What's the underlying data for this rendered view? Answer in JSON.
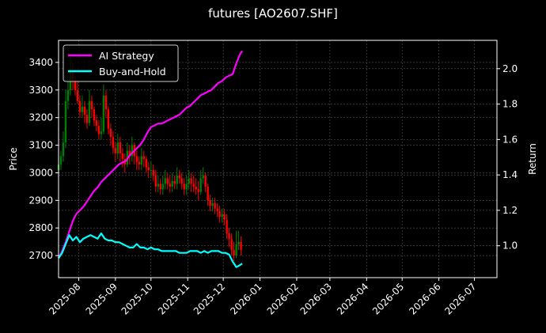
{
  "chart_data": {
    "type": "line",
    "title": "futures [AO2607.SHF]",
    "xlabel": "",
    "ylabel": "Price",
    "ylabel_right": "Return",
    "grid": true,
    "legend_position": "upper left",
    "ylim": [
      2620,
      3480
    ],
    "ylim_right": [
      0.82,
      2.16
    ],
    "xlim": [
      "2025-07-15",
      "2026-07-20"
    ],
    "x_ticks": [
      "2025-08",
      "2025-09",
      "2025-10",
      "2025-11",
      "2025-12",
      "2026-01",
      "2026-02",
      "2026-03",
      "2026-04",
      "2026-05",
      "2026-06",
      "2026-07"
    ],
    "y_ticks_left": [
      2700,
      2800,
      2900,
      3000,
      3100,
      3200,
      3300,
      3400
    ],
    "y_ticks_right": [
      "1.0",
      "1.2",
      "1.4",
      "1.6",
      "1.8",
      "2.0"
    ],
    "colors": {
      "ai_strategy": "#ff00ff",
      "buy_and_hold": "#00ffff",
      "candle_up": "#008000",
      "candle_down": "#ff0000",
      "background": "#000000",
      "grid": "#555555",
      "axes": "#ffffff"
    },
    "series": [
      {
        "name": "AI Strategy",
        "axis": "right",
        "x": [
          "2025-07-15",
          "2025-07-18",
          "2025-07-21",
          "2025-07-24",
          "2025-07-27",
          "2025-07-30",
          "2025-08-02",
          "2025-08-05",
          "2025-08-08",
          "2025-08-11",
          "2025-08-14",
          "2025-08-17",
          "2025-08-20",
          "2025-08-23",
          "2025-08-26",
          "2025-08-29",
          "2025-09-01",
          "2025-09-04",
          "2025-09-07",
          "2025-09-10",
          "2025-09-13",
          "2025-09-16",
          "2025-09-19",
          "2025-09-22",
          "2025-09-25",
          "2025-09-28",
          "2025-10-01",
          "2025-10-04",
          "2025-10-07",
          "2025-10-10",
          "2025-10-13",
          "2025-10-16",
          "2025-10-19",
          "2025-10-22",
          "2025-10-25",
          "2025-10-28",
          "2025-10-31",
          "2025-11-03",
          "2025-11-06",
          "2025-11-09",
          "2025-11-12",
          "2025-11-15",
          "2025-11-18",
          "2025-11-21",
          "2025-11-24",
          "2025-11-27",
          "2025-11-30",
          "2025-12-03",
          "2025-12-06",
          "2025-12-09",
          "2025-12-12",
          "2025-12-15",
          "2025-12-17"
        ],
        "values": [
          0.93,
          0.97,
          1.02,
          1.08,
          1.14,
          1.18,
          1.2,
          1.22,
          1.25,
          1.28,
          1.31,
          1.33,
          1.36,
          1.38,
          1.4,
          1.42,
          1.44,
          1.46,
          1.47,
          1.48,
          1.51,
          1.53,
          1.55,
          1.57,
          1.6,
          1.64,
          1.67,
          1.68,
          1.69,
          1.69,
          1.7,
          1.71,
          1.72,
          1.73,
          1.74,
          1.76,
          1.78,
          1.79,
          1.81,
          1.83,
          1.85,
          1.86,
          1.87,
          1.88,
          1.9,
          1.92,
          1.93,
          1.95,
          1.96,
          1.97,
          2.03,
          2.08,
          2.1
        ]
      },
      {
        "name": "Buy-and-Hold",
        "axis": "right",
        "x": [
          "2025-07-15",
          "2025-07-18",
          "2025-07-21",
          "2025-07-24",
          "2025-07-27",
          "2025-07-30",
          "2025-08-02",
          "2025-08-05",
          "2025-08-08",
          "2025-08-11",
          "2025-08-14",
          "2025-08-17",
          "2025-08-20",
          "2025-08-23",
          "2025-08-26",
          "2025-08-29",
          "2025-09-01",
          "2025-09-04",
          "2025-09-07",
          "2025-09-10",
          "2025-09-13",
          "2025-09-16",
          "2025-09-19",
          "2025-09-22",
          "2025-09-25",
          "2025-09-28",
          "2025-10-01",
          "2025-10-04",
          "2025-10-07",
          "2025-10-10",
          "2025-10-13",
          "2025-10-16",
          "2025-10-19",
          "2025-10-22",
          "2025-10-25",
          "2025-10-28",
          "2025-10-31",
          "2025-11-03",
          "2025-11-06",
          "2025-11-09",
          "2025-11-12",
          "2025-11-15",
          "2025-11-18",
          "2025-11-21",
          "2025-11-24",
          "2025-11-27",
          "2025-11-30",
          "2025-12-03",
          "2025-12-06",
          "2025-12-09",
          "2025-12-12",
          "2025-12-15",
          "2025-12-17"
        ],
        "values": [
          0.93,
          0.96,
          1.01,
          1.06,
          1.03,
          1.05,
          1.02,
          1.04,
          1.05,
          1.06,
          1.05,
          1.04,
          1.07,
          1.04,
          1.03,
          1.03,
          1.02,
          1.02,
          1.01,
          1.0,
          0.99,
          0.99,
          1.01,
          0.99,
          0.99,
          0.98,
          0.99,
          0.98,
          0.98,
          0.97,
          0.97,
          0.97,
          0.97,
          0.97,
          0.96,
          0.96,
          0.96,
          0.97,
          0.97,
          0.97,
          0.96,
          0.97,
          0.96,
          0.97,
          0.97,
          0.97,
          0.96,
          0.96,
          0.95,
          0.91,
          0.88,
          0.89,
          0.9
        ]
      }
    ],
    "candles": {
      "axis": "left",
      "x": [
        "2025-07-15",
        "2025-07-17",
        "2025-07-19",
        "2025-07-21",
        "2025-07-23",
        "2025-07-25",
        "2025-07-27",
        "2025-07-29",
        "2025-07-31",
        "2025-08-02",
        "2025-08-04",
        "2025-08-06",
        "2025-08-08",
        "2025-08-10",
        "2025-08-12",
        "2025-08-14",
        "2025-08-16",
        "2025-08-18",
        "2025-08-20",
        "2025-08-22",
        "2025-08-24",
        "2025-08-26",
        "2025-08-28",
        "2025-08-30",
        "2025-09-01",
        "2025-09-03",
        "2025-09-05",
        "2025-09-07",
        "2025-09-09",
        "2025-09-11",
        "2025-09-13",
        "2025-09-15",
        "2025-09-17",
        "2025-09-19",
        "2025-09-21",
        "2025-09-23",
        "2025-09-25",
        "2025-09-27",
        "2025-09-29",
        "2025-10-01",
        "2025-10-03",
        "2025-10-05",
        "2025-10-07",
        "2025-10-09",
        "2025-10-11",
        "2025-10-13",
        "2025-10-15",
        "2025-10-17",
        "2025-10-19",
        "2025-10-21",
        "2025-10-23",
        "2025-10-25",
        "2025-10-27",
        "2025-10-29",
        "2025-10-31",
        "2025-11-02",
        "2025-11-04",
        "2025-11-06",
        "2025-11-08",
        "2025-11-10",
        "2025-11-12",
        "2025-11-14",
        "2025-11-16",
        "2025-11-18",
        "2025-11-20",
        "2025-11-22",
        "2025-11-24",
        "2025-11-26",
        "2025-11-28",
        "2025-11-30",
        "2025-12-02",
        "2025-12-04",
        "2025-12-06",
        "2025-12-08",
        "2025-12-10",
        "2025-12-12",
        "2025-12-14",
        "2025-12-16"
      ],
      "open": [
        3010,
        3030,
        3060,
        3110,
        3260,
        3300,
        3370,
        3330,
        3300,
        3260,
        3220,
        3240,
        3210,
        3180,
        3260,
        3230,
        3190,
        3170,
        3140,
        3150,
        3280,
        3230,
        3160,
        3130,
        3090,
        3070,
        3110,
        3070,
        3050,
        3030,
        3080,
        3060,
        3100,
        3060,
        3040,
        3030,
        3060,
        3050,
        3020,
        3010,
        3010,
        2990,
        2950,
        2960,
        2940,
        2960,
        2980,
        2960,
        2950,
        2970,
        2960,
        2990,
        2980,
        2960,
        2940,
        2960,
        2980,
        2960,
        2950,
        2940,
        2930,
        2980,
        2990,
        2950,
        2900,
        2880,
        2890,
        2870,
        2860,
        2840,
        2850,
        2830,
        2780,
        2760,
        2720,
        2700,
        2740,
        2750
      ],
      "close": [
        3030,
        3060,
        3110,
        3260,
        3300,
        3370,
        3330,
        3300,
        3260,
        3220,
        3240,
        3210,
        3180,
        3260,
        3230,
        3190,
        3170,
        3140,
        3150,
        3280,
        3230,
        3160,
        3130,
        3090,
        3070,
        3110,
        3070,
        3050,
        3030,
        3080,
        3060,
        3100,
        3060,
        3040,
        3030,
        3060,
        3050,
        3020,
        3010,
        3010,
        2990,
        2950,
        2960,
        2940,
        2960,
        2980,
        2960,
        2950,
        2970,
        2960,
        2990,
        2980,
        2960,
        2940,
        2960,
        2980,
        2960,
        2950,
        2940,
        2930,
        2980,
        2990,
        2950,
        2900,
        2880,
        2890,
        2870,
        2860,
        2840,
        2850,
        2830,
        2780,
        2760,
        2720,
        2700,
        2740,
        2750,
        2720
      ],
      "high": [
        3050,
        3080,
        3150,
        3300,
        3350,
        3420,
        3400,
        3350,
        3330,
        3280,
        3280,
        3260,
        3230,
        3300,
        3280,
        3240,
        3210,
        3190,
        3200,
        3320,
        3300,
        3240,
        3180,
        3150,
        3110,
        3140,
        3130,
        3090,
        3070,
        3110,
        3100,
        3130,
        3110,
        3080,
        3060,
        3090,
        3080,
        3060,
        3040,
        3040,
        3030,
        3010,
        2990,
        2980,
        2990,
        3010,
        3000,
        2990,
        3000,
        2990,
        3020,
        3010,
        3000,
        2980,
        2990,
        3010,
        3000,
        2990,
        2980,
        2970,
        3010,
        3020,
        3000,
        2960,
        2920,
        2910,
        2910,
        2890,
        2880,
        2870,
        2870,
        2850,
        2800,
        2780,
        2750,
        2790,
        2790,
        2770
      ],
      "low": [
        2990,
        3010,
        3040,
        3090,
        3230,
        3280,
        3300,
        3280,
        3250,
        3200,
        3200,
        3180,
        3160,
        3170,
        3200,
        3170,
        3150,
        3120,
        3120,
        3140,
        3200,
        3140,
        3100,
        3070,
        3040,
        3050,
        3040,
        3020,
        3000,
        3020,
        3030,
        3040,
        3030,
        3010,
        3010,
        3010,
        3020,
        3000,
        2980,
        2980,
        2970,
        2930,
        2930,
        2920,
        2920,
        2940,
        2940,
        2930,
        2930,
        2940,
        2940,
        2960,
        2940,
        2920,
        2920,
        2940,
        2930,
        2930,
        2920,
        2900,
        2920,
        2960,
        2930,
        2880,
        2860,
        2860,
        2850,
        2840,
        2820,
        2820,
        2810,
        2760,
        2730,
        2700,
        2680,
        2690,
        2720,
        2700
      ]
    }
  }
}
